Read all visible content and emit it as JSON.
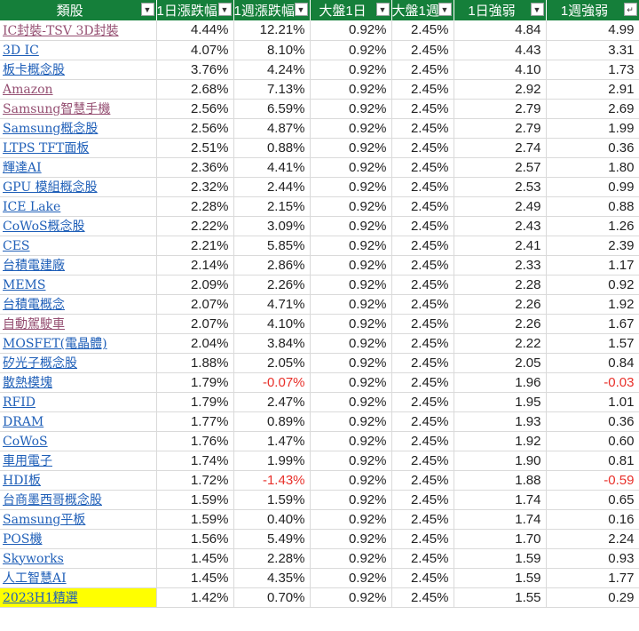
{
  "colors": {
    "header_bg": "#157f3a",
    "link_blue": "#1f5fb8",
    "link_purple": "#954f72",
    "negative": "#e8302a",
    "highlight": "#ffff00"
  },
  "header": {
    "columns": [
      "類股",
      "1日漲跌幅",
      "1週漲跌幅",
      "大盤1日",
      "大盤1週",
      "1日強弱",
      "1週強弱"
    ],
    "filter_icons": [
      "filter-dropdown-icon",
      "filter-dropdown-icon",
      "filter-dropdown-icon",
      "filter-dropdown-icon",
      "filter-dropdown-icon",
      "filter-dropdown-icon",
      "sort-descending-filter-icon"
    ]
  },
  "rows": [
    [
      "IC封裝-TSV 3D封裝",
      "4.44%",
      "12.21%",
      "0.92%",
      "2.45%",
      "4.84",
      "4.99"
    ],
    [
      "3D IC",
      "4.07%",
      "8.10%",
      "0.92%",
      "2.45%",
      "4.43",
      "3.31"
    ],
    [
      "板卡概念股",
      "3.76%",
      "4.24%",
      "0.92%",
      "2.45%",
      "4.10",
      "1.73"
    ],
    [
      "Amazon",
      "2.68%",
      "7.13%",
      "0.92%",
      "2.45%",
      "2.92",
      "2.91"
    ],
    [
      "Samsung智慧手機",
      "2.56%",
      "6.59%",
      "0.92%",
      "2.45%",
      "2.79",
      "2.69"
    ],
    [
      "Samsung概念股",
      "2.56%",
      "4.87%",
      "0.92%",
      "2.45%",
      "2.79",
      "1.99"
    ],
    [
      "LTPS TFT面板",
      "2.51%",
      "0.88%",
      "0.92%",
      "2.45%",
      "2.74",
      "0.36"
    ],
    [
      "輝達AI",
      "2.36%",
      "4.41%",
      "0.92%",
      "2.45%",
      "2.57",
      "1.80"
    ],
    [
      "GPU 模組概念股",
      "2.32%",
      "2.44%",
      "0.92%",
      "2.45%",
      "2.53",
      "0.99"
    ],
    [
      "ICE Lake",
      "2.28%",
      "2.15%",
      "0.92%",
      "2.45%",
      "2.49",
      "0.88"
    ],
    [
      "CoWoS概念股",
      "2.22%",
      "3.09%",
      "0.92%",
      "2.45%",
      "2.43",
      "1.26"
    ],
    [
      "CES",
      "2.21%",
      "5.85%",
      "0.92%",
      "2.45%",
      "2.41",
      "2.39"
    ],
    [
      "台積電建廠",
      "2.14%",
      "2.86%",
      "0.92%",
      "2.45%",
      "2.33",
      "1.17"
    ],
    [
      "MEMS",
      "2.09%",
      "2.26%",
      "0.92%",
      "2.45%",
      "2.28",
      "0.92"
    ],
    [
      "台積電概念",
      "2.07%",
      "4.71%",
      "0.92%",
      "2.45%",
      "2.26",
      "1.92"
    ],
    [
      "自動駕駛車",
      "2.07%",
      "4.10%",
      "0.92%",
      "2.45%",
      "2.26",
      "1.67"
    ],
    [
      "MOSFET(電晶體)",
      "2.04%",
      "3.84%",
      "0.92%",
      "2.45%",
      "2.22",
      "1.57"
    ],
    [
      "矽光子概念股",
      "1.88%",
      "2.05%",
      "0.92%",
      "2.45%",
      "2.05",
      "0.84"
    ],
    [
      "散熱模塊",
      "1.79%",
      "-0.07%",
      "0.92%",
      "2.45%",
      "1.96",
      "-0.03"
    ],
    [
      "RFID",
      "1.79%",
      "2.47%",
      "0.92%",
      "2.45%",
      "1.95",
      "1.01"
    ],
    [
      "DRAM",
      "1.77%",
      "0.89%",
      "0.92%",
      "2.45%",
      "1.93",
      "0.36"
    ],
    [
      "CoWoS",
      "1.76%",
      "1.47%",
      "0.92%",
      "2.45%",
      "1.92",
      "0.60"
    ],
    [
      "車用電子",
      "1.74%",
      "1.99%",
      "0.92%",
      "2.45%",
      "1.90",
      "0.81"
    ],
    [
      "HDI板",
      "1.72%",
      "-1.43%",
      "0.92%",
      "2.45%",
      "1.88",
      "-0.59"
    ],
    [
      "台商墨西哥概念股",
      "1.59%",
      "1.59%",
      "0.92%",
      "2.45%",
      "1.74",
      "0.65"
    ],
    [
      "Samsung平板",
      "1.59%",
      "0.40%",
      "0.92%",
      "2.45%",
      "1.74",
      "0.16"
    ],
    [
      "POS機",
      "1.56%",
      "5.49%",
      "0.92%",
      "2.45%",
      "1.70",
      "2.24"
    ],
    [
      "Skyworks",
      "1.45%",
      "2.28%",
      "0.92%",
      "2.45%",
      "1.59",
      "0.93"
    ],
    [
      "人工智慧AI",
      "1.45%",
      "4.35%",
      "0.92%",
      "2.45%",
      "1.59",
      "1.77"
    ],
    [
      "2023H1精選",
      "1.42%",
      "0.70%",
      "0.92%",
      "2.45%",
      "1.55",
      "0.29"
    ]
  ],
  "visited_rows": [
    0,
    3,
    4,
    15
  ],
  "highlighted_rows": [
    29
  ]
}
